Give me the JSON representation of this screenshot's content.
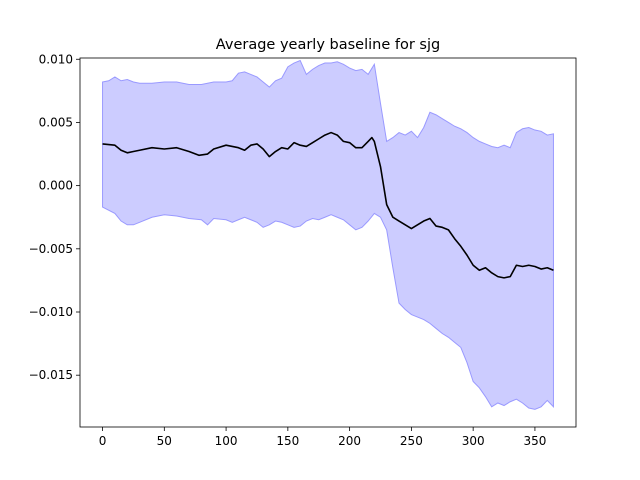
{
  "chart_data": {
    "type": "line",
    "title": "Average yearly baseline for sjg",
    "xlabel": "",
    "ylabel": "",
    "xlim": [
      -18.25,
      383.25
    ],
    "ylim": [
      -0.0191,
      0.0101
    ],
    "xticks": [
      0,
      50,
      100,
      150,
      200,
      250,
      300,
      350
    ],
    "xtick_labels": [
      "0",
      "50",
      "100",
      "150",
      "200",
      "250",
      "300",
      "350"
    ],
    "yticks": [
      0.01,
      0.005,
      0.0,
      -0.005,
      -0.01,
      -0.015
    ],
    "ytick_labels": [
      "0.010",
      "0.005",
      "0.000",
      "−0.005",
      "−0.010",
      "−0.015"
    ],
    "grid": false,
    "colors": {
      "mean_line": "#000000",
      "band_fill": "#ccccff",
      "band_edge": "#9999ff"
    },
    "series": [
      {
        "role": "mean",
        "x": [
          0,
          10,
          15,
          20,
          25,
          30,
          40,
          50,
          60,
          70,
          78,
          85,
          90,
          100,
          105,
          110,
          115,
          120,
          125,
          130,
          135,
          140,
          145,
          150,
          155,
          160,
          165,
          170,
          175,
          180,
          185,
          190,
          195,
          200,
          205,
          210,
          215,
          218,
          220,
          225,
          230,
          235,
          240,
          245,
          250,
          255,
          260,
          265,
          270,
          275,
          280,
          285,
          290,
          295,
          300,
          305,
          310,
          315,
          320,
          325,
          330,
          335,
          340,
          345,
          350,
          355,
          360,
          365
        ],
        "values": [
          0.0033,
          0.0032,
          0.0028,
          0.0026,
          0.0027,
          0.0028,
          0.003,
          0.0029,
          0.003,
          0.0027,
          0.0024,
          0.0025,
          0.0029,
          0.0032,
          0.0031,
          0.003,
          0.0028,
          0.0032,
          0.0033,
          0.0029,
          0.0023,
          0.0027,
          0.003,
          0.0029,
          0.0034,
          0.0032,
          0.0031,
          0.0034,
          0.0037,
          0.004,
          0.0042,
          0.004,
          0.0035,
          0.0034,
          0.003,
          0.003,
          0.0035,
          0.0038,
          0.0035,
          0.0015,
          -0.0015,
          -0.0025,
          -0.0028,
          -0.0031,
          -0.0034,
          -0.0031,
          -0.0028,
          -0.0026,
          -0.0032,
          -0.0033,
          -0.0035,
          -0.0042,
          -0.0048,
          -0.0055,
          -0.0063,
          -0.0067,
          -0.0065,
          -0.0069,
          -0.0072,
          -0.0073,
          -0.0072,
          -0.0063,
          -0.0064,
          -0.0063,
          -0.0064,
          -0.0066,
          -0.0065,
          -0.0067
        ]
      },
      {
        "role": "upper_bound",
        "x": [
          0,
          5,
          10,
          15,
          20,
          25,
          30,
          40,
          50,
          60,
          70,
          80,
          90,
          100,
          105,
          110,
          115,
          120,
          125,
          130,
          135,
          140,
          145,
          150,
          155,
          160,
          165,
          170,
          175,
          180,
          185,
          190,
          195,
          200,
          205,
          210,
          215,
          220,
          225,
          230,
          235,
          240,
          245,
          250,
          255,
          260,
          265,
          270,
          275,
          280,
          285,
          290,
          295,
          300,
          305,
          310,
          315,
          320,
          325,
          330,
          335,
          340,
          345,
          350,
          355,
          360,
          365
        ],
        "values": [
          0.0082,
          0.0083,
          0.0086,
          0.0083,
          0.0084,
          0.0082,
          0.0081,
          0.0081,
          0.0082,
          0.0082,
          0.008,
          0.008,
          0.0082,
          0.0082,
          0.0083,
          0.0089,
          0.009,
          0.0088,
          0.0086,
          0.0082,
          0.0078,
          0.0083,
          0.0085,
          0.0094,
          0.0097,
          0.0099,
          0.0088,
          0.0092,
          0.0095,
          0.0097,
          0.0097,
          0.0098,
          0.0096,
          0.0093,
          0.0091,
          0.0092,
          0.0088,
          0.0096,
          0.0065,
          0.0035,
          0.0038,
          0.0042,
          0.004,
          0.0043,
          0.0038,
          0.0046,
          0.0058,
          0.0056,
          0.0053,
          0.005,
          0.0047,
          0.0045,
          0.0042,
          0.0038,
          0.0035,
          0.0033,
          0.0031,
          0.003,
          0.0032,
          0.003,
          0.0042,
          0.0045,
          0.0046,
          0.0044,
          0.0043,
          0.004,
          0.0041
        ]
      },
      {
        "role": "lower_bound",
        "x": [
          0,
          10,
          15,
          20,
          25,
          30,
          40,
          50,
          60,
          70,
          80,
          85,
          90,
          100,
          105,
          110,
          115,
          120,
          125,
          130,
          135,
          140,
          145,
          150,
          155,
          160,
          165,
          170,
          175,
          180,
          185,
          190,
          195,
          200,
          205,
          210,
          215,
          220,
          225,
          230,
          235,
          240,
          245,
          250,
          255,
          260,
          265,
          270,
          275,
          280,
          285,
          290,
          295,
          300,
          305,
          310,
          315,
          320,
          325,
          330,
          335,
          340,
          345,
          350,
          355,
          360,
          365
        ],
        "values": [
          -0.0017,
          -0.0022,
          -0.0028,
          -0.0031,
          -0.0031,
          -0.0029,
          -0.0025,
          -0.0023,
          -0.0024,
          -0.0026,
          -0.0027,
          -0.0031,
          -0.0026,
          -0.0027,
          -0.0029,
          -0.0027,
          -0.0025,
          -0.0027,
          -0.0029,
          -0.0033,
          -0.0031,
          -0.0028,
          -0.0029,
          -0.0031,
          -0.0033,
          -0.0032,
          -0.0028,
          -0.0026,
          -0.0027,
          -0.0025,
          -0.0023,
          -0.0025,
          -0.0027,
          -0.0031,
          -0.0035,
          -0.0033,
          -0.0028,
          -0.0022,
          -0.0025,
          -0.0035,
          -0.0065,
          -0.0093,
          -0.0098,
          -0.0102,
          -0.0104,
          -0.0106,
          -0.0109,
          -0.0113,
          -0.0117,
          -0.012,
          -0.0124,
          -0.0128,
          -0.014,
          -0.0155,
          -0.016,
          -0.0167,
          -0.0175,
          -0.0172,
          -0.0174,
          -0.0171,
          -0.0169,
          -0.0172,
          -0.0176,
          -0.0177,
          -0.0175,
          -0.017,
          -0.0175
        ]
      }
    ]
  }
}
